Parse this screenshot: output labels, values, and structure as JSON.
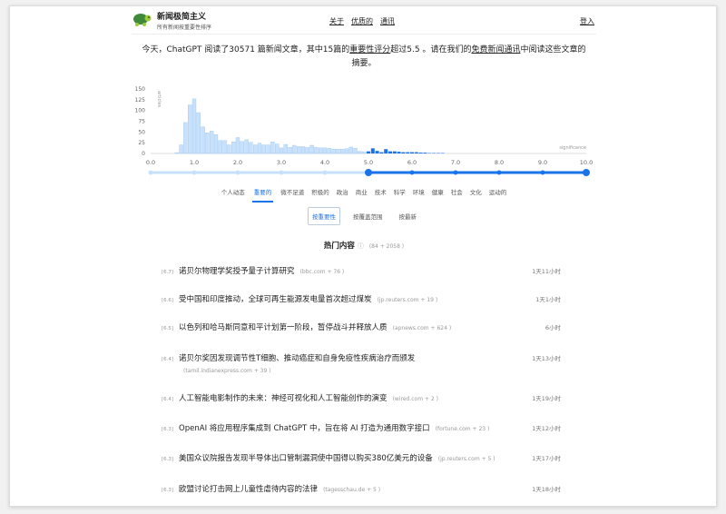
{
  "header": {
    "brand": "新闻极简主义",
    "tagline": "所有新闻按重要性排序",
    "nav": [
      "关于",
      "优质的",
      "通讯"
    ],
    "login": "登入",
    "logo_icon": "turtle-icon"
  },
  "intro": {
    "p1": "今天，ChatGPT 阅读了30571 篇新闻文章，其中15篇的",
    "link1": "重要性评分",
    "p2": "超过5.5 。请在我们的",
    "link2": "免费新闻通讯",
    "p3": "中阅读这些文章的摘要。"
  },
  "chart_data": {
    "type": "bar",
    "ylabel": "articles",
    "xlabel": "significance",
    "ylim": [
      0,
      150
    ],
    "xlim": [
      0,
      10
    ],
    "yticks": [
      "0",
      "25",
      "50",
      "75",
      "100",
      "125",
      "150"
    ],
    "xticks": [
      "0.0",
      "1.0",
      "2.0",
      "3.0",
      "4.0",
      "5.0",
      "6.0",
      "7.0",
      "8.0",
      "9.0",
      "10.0"
    ],
    "threshold": 5.0,
    "colors": {
      "below": "#c7e0fb",
      "above": "#1a73e8"
    },
    "x": [
      0.6,
      0.7,
      0.8,
      0.9,
      1.0,
      1.1,
      1.2,
      1.3,
      1.4,
      1.5,
      1.6,
      1.7,
      1.8,
      1.9,
      2.0,
      2.1,
      2.2,
      2.3,
      2.4,
      2.5,
      2.6,
      2.7,
      2.8,
      2.9,
      3.0,
      3.1,
      3.2,
      3.3,
      3.4,
      3.5,
      3.6,
      3.7,
      3.8,
      3.9,
      4.0,
      4.1,
      4.2,
      4.3,
      4.4,
      4.5,
      4.6,
      4.7,
      4.8,
      4.9,
      5.0,
      5.1,
      5.2,
      5.3,
      5.4,
      5.5,
      5.6,
      5.7,
      5.8,
      5.9,
      6.0,
      6.1,
      6.2,
      6.3,
      6.4,
      6.5,
      6.6,
      6.7
    ],
    "values": [
      2,
      20,
      72,
      113,
      127,
      95,
      62,
      48,
      52,
      44,
      30,
      30,
      20,
      27,
      37,
      28,
      32,
      26,
      20,
      24,
      20,
      20,
      27,
      22,
      13,
      21,
      14,
      19,
      16,
      16,
      14,
      19,
      14,
      13,
      13,
      12,
      10,
      10,
      10,
      11,
      15,
      12,
      5,
      4,
      5,
      12,
      6,
      3,
      10,
      5,
      5,
      4,
      3,
      3,
      3,
      3,
      2,
      2,
      1,
      1,
      1,
      1
    ]
  },
  "slider": {
    "value": 5.0,
    "min": 0,
    "max": 10
  },
  "categories": [
    "个人动态",
    "重要的",
    "微不足道",
    "积极的",
    "政治",
    "商业",
    "技术",
    "科学",
    "环境",
    "健康",
    "社会",
    "文化",
    "运动的"
  ],
  "active_category": "重要的",
  "sorts": [
    "按重要性",
    "按覆盖范围",
    "按最新"
  ],
  "section": {
    "title": "热门内容",
    "count": "(84 + 2058 )"
  },
  "articles": [
    {
      "score": "[6.7]",
      "title": "诺贝尔物理学奖授予量子计算研究",
      "source": "(bbc.com + 76 )",
      "time": "1天11小时"
    },
    {
      "score": "[6.6]",
      "title": "受中国和印度推动，全球可再生能源发电量首次超过煤炭",
      "source": "(jp.reuters.com + 19 )",
      "time": "1天1小时"
    },
    {
      "score": "[6.5]",
      "title": "以色列和哈马斯同意和平计划第一阶段，暂停战斗并释放人质",
      "source": "(apnews.com + 624 )",
      "time": "6小时"
    },
    {
      "score": "[6.4]",
      "title": "诺贝尔奖因发现调节性T细胞、推动癌症和自身免疫性疾病治疗而颁发",
      "source": "(tamil.indianexpress.com + 39 )",
      "time": "1天13小时"
    },
    {
      "score": "[6.4]",
      "title": "人工智能电影制作的未来：神经可视化和人工智能创作的演变",
      "source": "(wired.com + 2 )",
      "time": "1天19小时"
    },
    {
      "score": "[6.3]",
      "title": "OpenAI 将应用程序集成到 ChatGPT 中，旨在将 AI 打造为通用数字接口",
      "source": "(fortune.com + 23 )",
      "time": "1天12小时"
    },
    {
      "score": "[6.3]",
      "title": "美国众议院报告发现半导体出口管制漏洞使中国得以购买380亿美元的设备",
      "source": "(jp.reuters.com + 5 )",
      "time": "1天17小时"
    },
    {
      "score": "[6.3]",
      "title": "欧盟讨论打击网上儿童性虐待内容的法律",
      "source": "(tagesschau.de + 5 )",
      "time": "1天18小时"
    }
  ]
}
